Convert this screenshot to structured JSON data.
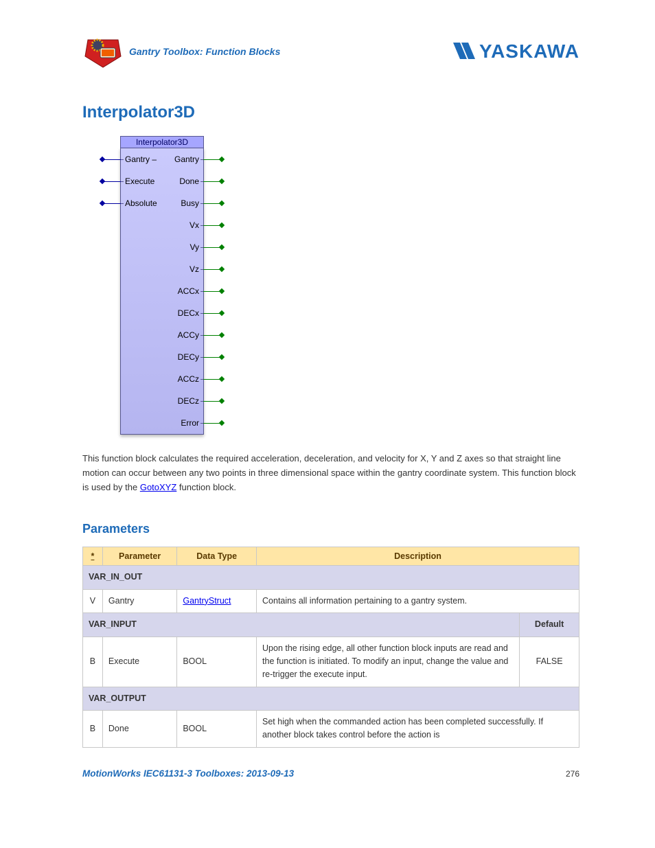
{
  "header": {
    "subtitle": "Gantry Toolbox: Function Blocks",
    "brand": "YASKAWA"
  },
  "main": {
    "title": "Interpolator3D",
    "description_pre": "This function block calculates the required acceleration, deceleration, and velocity for X, Y and Z axes so that straight line motion can occur between any two points in three dimensional space within the gantry coordinate system.  This function block is used by the ",
    "description_link": "GotoXYZ",
    "description_post": " function block."
  },
  "fb_diagram": {
    "title": "Interpolator3D",
    "inputs": [
      "Gantry",
      "Execute",
      "Absolute"
    ],
    "outputs": [
      "Gantry",
      "Done",
      "Busy",
      "Vx",
      "Vy",
      "Vz",
      "ACCx",
      "DECx",
      "ACCy",
      "DECy",
      "ACCz",
      "DECz",
      "Error"
    ],
    "first_row_dash": "–"
  },
  "parameters": {
    "heading": "Parameters",
    "columns": {
      "star": "*",
      "param": "Parameter",
      "type": "Data Type",
      "desc": "Description",
      "default": "Default"
    },
    "sections": {
      "var_in_out": "VAR_IN_OUT",
      "var_input": "VAR_INPUT",
      "var_output": "VAR_OUTPUT"
    },
    "rows": {
      "gantry": {
        "star": "V",
        "param": "Gantry",
        "type": "GantryStruct",
        "type_is_link": true,
        "desc": "Contains all information pertaining to a gantry system."
      },
      "execute": {
        "star": "B",
        "param": "Execute",
        "type": "BOOL",
        "desc": "Upon the rising edge, all other function block inputs are read and the function is initiated. To modify an input, change the value and re-trigger the execute input.",
        "default": "FALSE"
      },
      "done": {
        "star": "B",
        "param": "Done",
        "type": "BOOL",
        "desc": "Set high when the commanded action has been completed successfully. If another block takes control before the action is"
      }
    }
  },
  "footer": {
    "left": "MotionWorks IEC61131-3 Toolboxes: 2013-09-13",
    "page": "276"
  },
  "colors": {
    "brand_blue": "#1e6bb8",
    "th_bg": "#ffe6a6",
    "section_bg": "#d6d6ec",
    "fb_bg": "#c2c2f8",
    "border": "#c8c8c8"
  }
}
